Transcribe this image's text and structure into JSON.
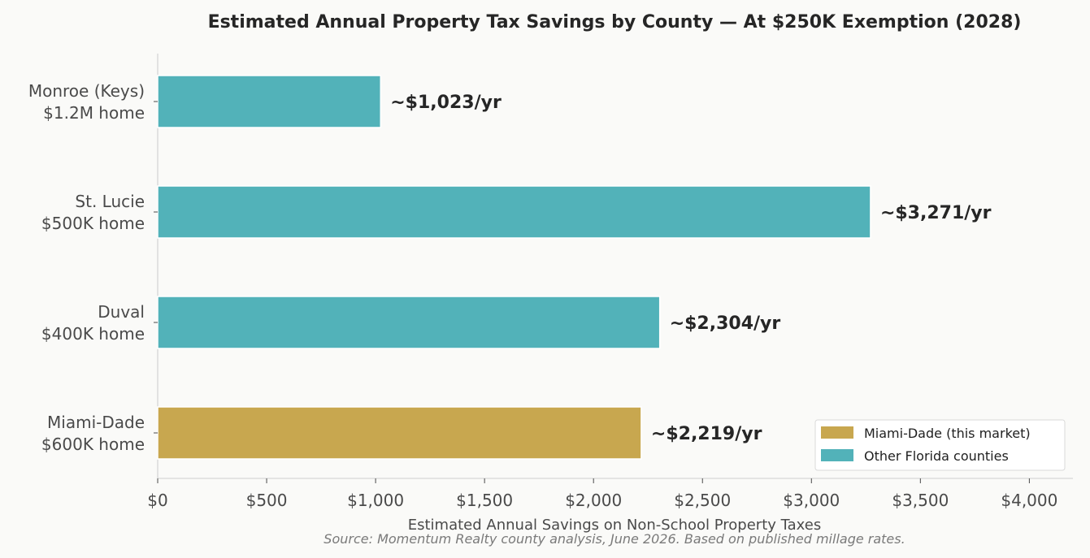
{
  "chart_data": {
    "type": "bar",
    "orientation": "horizontal",
    "title": "Estimated Annual Property Tax Savings by County — At $250K Exemption (2028)",
    "xlabel": "Estimated Annual Savings on Non-School Property Taxes",
    "source": "Source: Momentum Realty county analysis, June 2026. Based on published millage rates.",
    "xlim": [
      0,
      4200
    ],
    "xticks": [
      {
        "value": 0,
        "label": "$0"
      },
      {
        "value": 500,
        "label": "$500"
      },
      {
        "value": 1000,
        "label": "$1,000"
      },
      {
        "value": 1500,
        "label": "$1,500"
      },
      {
        "value": 2000,
        "label": "$2,000"
      },
      {
        "value": 2500,
        "label": "$2,500"
      },
      {
        "value": 3000,
        "label": "$3,000"
      },
      {
        "value": 3500,
        "label": "$3,500"
      },
      {
        "value": 4000,
        "label": "$4,000"
      }
    ],
    "grid": false,
    "legend_position": "bottom-right",
    "legend": [
      {
        "label": "Miami-Dade (this market)",
        "color": "#c8a74f"
      },
      {
        "label": "Other Florida counties",
        "color": "#52b2b9"
      }
    ],
    "bars": [
      {
        "label_line1": "Monroe (Keys)",
        "label_line2": "$1.2M home",
        "value": 1023,
        "data_label": "~$1,023/yr",
        "color": "#52b2b9"
      },
      {
        "label_line1": "St. Lucie",
        "label_line2": "$500K home",
        "value": 3271,
        "data_label": "~$3,271/yr",
        "color": "#52b2b9"
      },
      {
        "label_line1": "Duval",
        "label_line2": "$400K home",
        "value": 2304,
        "data_label": "~$2,304/yr",
        "color": "#52b2b9"
      },
      {
        "label_line1": "Miami-Dade",
        "label_line2": "$600K home",
        "value": 2219,
        "data_label": "~$2,219/yr",
        "color": "#c8a74f"
      }
    ]
  }
}
